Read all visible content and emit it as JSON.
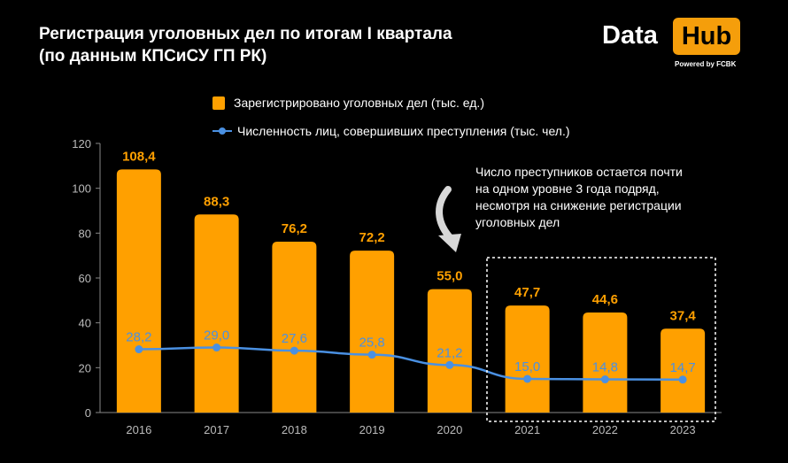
{
  "header": {
    "title_line1": "Регистрация уголовных дел по итогам I квартала",
    "title_line2": "(по данным КПСиСУ ГП РК)"
  },
  "logo": {
    "word1": "Data",
    "word2": "Hub",
    "powered": "Powered by FCBK"
  },
  "annotation": {
    "line1": "Число преступников остается почти",
    "line2": "на одном уровне 3 года подряд,",
    "line3": "несмотря на снижение регистрации",
    "line4": "уголовных дел"
  },
  "colors": {
    "bar": "#ffa000",
    "bar_label": "#ffa000",
    "line": "#4a90e2",
    "axis_text": "#bbbbbb",
    "background": "#000000"
  },
  "chart_data": {
    "type": "bar",
    "categories": [
      "2016",
      "2017",
      "2018",
      "2019",
      "2020",
      "2021",
      "2022",
      "2023"
    ],
    "series": [
      {
        "name": "Зарегистрировано уголовных дел (тыс. ед.)",
        "type": "bar",
        "values": [
          108.4,
          88.3,
          76.2,
          72.2,
          55.0,
          47.7,
          44.6,
          37.4
        ],
        "labels": [
          "108,4",
          "88,3",
          "76,2",
          "72,2",
          "55,0",
          "47,7",
          "44,6",
          "37,4"
        ]
      },
      {
        "name": "Численность лиц, совершивших преступления (тыс. чел.)",
        "type": "line",
        "values": [
          28.2,
          29.0,
          27.6,
          25.8,
          21.2,
          15.0,
          14.8,
          14.7
        ],
        "labels": [
          "28,2",
          "29,0",
          "27,6",
          "25,8",
          "21,2",
          "15,0",
          "14,8",
          "14,7"
        ]
      }
    ],
    "ylim": [
      0,
      120
    ],
    "yticks": [
      "0",
      "20",
      "40",
      "60",
      "80",
      "100",
      "120"
    ],
    "legend": "top",
    "grid": false
  }
}
